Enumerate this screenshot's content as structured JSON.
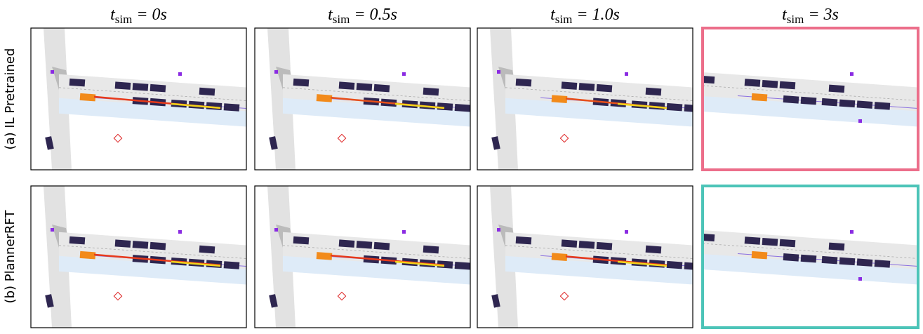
{
  "columns": [
    {
      "symbol": "t",
      "subscript": "sim",
      "time": "= 0s"
    },
    {
      "symbol": "t",
      "subscript": "sim",
      "time": "= 0.5s"
    },
    {
      "symbol": "t",
      "subscript": "sim",
      "time": "= 1.0s"
    },
    {
      "symbol": "t",
      "subscript": "sim",
      "time": "= 3s"
    }
  ],
  "rows": [
    {
      "label": "(a) IL Pretrained"
    },
    {
      "label": "(b) PlannerRFT"
    }
  ]
}
